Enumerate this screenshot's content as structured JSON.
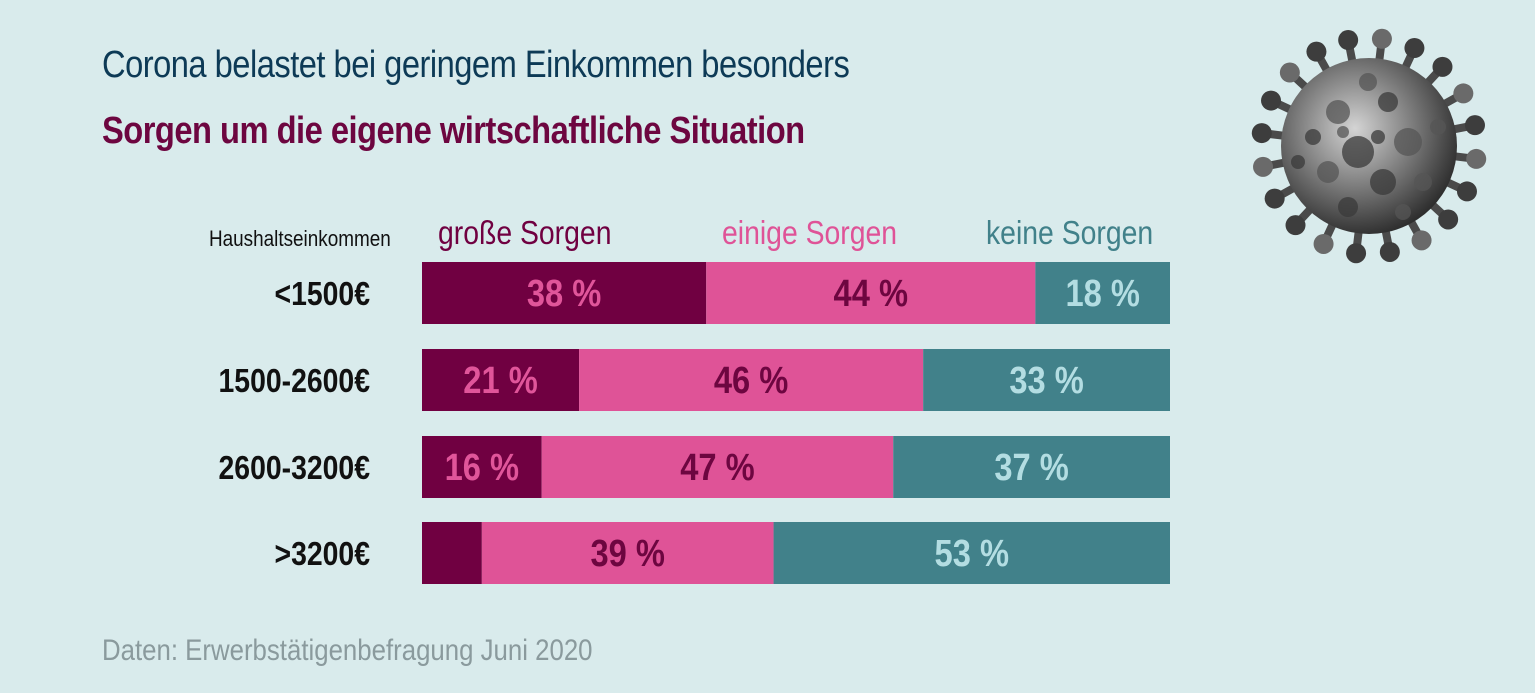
{
  "header": {
    "title": "Corona belastet bei geringem Einkommen besonders",
    "subtitle": "Sorgen um die eigene wirtschaftliche Situation"
  },
  "footer": {
    "source": "Daten: Erwerbstätigenbefragung Juni 2020"
  },
  "colors": {
    "background": "#d9ebec",
    "title": "#0d3a56",
    "subtitle": "#6d0640",
    "source": "#8a9a9d"
  },
  "chart_data": {
    "type": "bar",
    "orientation": "horizontal",
    "stacked": true,
    "title": "Sorgen um die eigene wirtschaftliche Situation",
    "category_axis_label": "Haushaltseinkommen",
    "categories": [
      "<1500€",
      "1500-2600€",
      "2600-3200€",
      ">3200€"
    ],
    "unit": "%",
    "series": [
      {
        "name": "große Sorgen",
        "values": [
          38,
          21,
          16,
          8
        ],
        "labels": [
          "38 %",
          "21 %",
          "16 %",
          ""
        ],
        "color": "#700041",
        "label_color": "#e0559a"
      },
      {
        "name": "einige Sorgen",
        "values": [
          44,
          46,
          47,
          39
        ],
        "labels": [
          "44 %",
          "46 %",
          "47 %",
          "39 %"
        ],
        "color": "#df5397",
        "label_color": "#6d0640"
      },
      {
        "name": "keine Sorgen",
        "values": [
          18,
          33,
          37,
          53
        ],
        "labels": [
          "18 %",
          "33 %",
          "37 %",
          "53 %"
        ],
        "color": "#41818a",
        "label_color": "#b3dde2"
      }
    ],
    "legend_colors": [
      "#700041",
      "#df5397",
      "#41818a"
    ],
    "legend_position": "top",
    "xlim": [
      0,
      100
    ],
    "grid": false
  }
}
